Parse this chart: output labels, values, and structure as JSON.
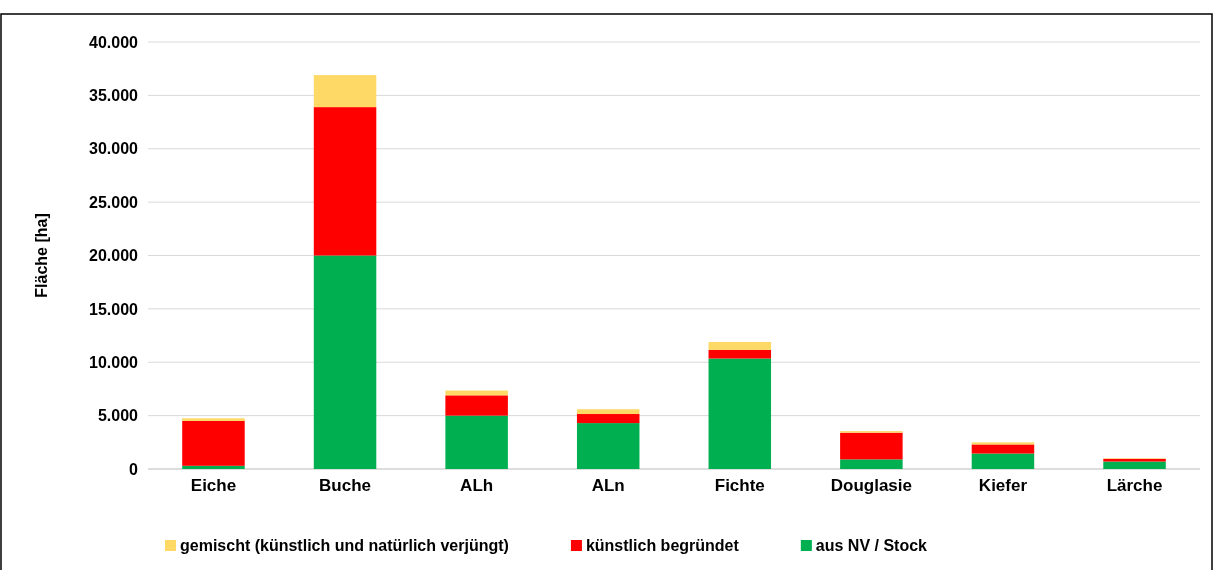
{
  "chart_data": {
    "type": "bar",
    "stacked": true,
    "ylabel": "Fläche [ha]",
    "categories": [
      "Eiche",
      "Buche",
      "ALh",
      "ALn",
      "Fichte",
      "Douglasie",
      "Kiefer",
      "Lärche"
    ],
    "series": [
      {
        "name": "aus NV / Stock",
        "color": "#00b050",
        "values": [
          300,
          20000,
          5000,
          4300,
          10350,
          900,
          1450,
          700
        ]
      },
      {
        "name": "künstlich begründet",
        "color": "#ff0000",
        "values": [
          4200,
          13900,
          1900,
          850,
          800,
          2500,
          850,
          250
        ]
      },
      {
        "name": "gemischt (künstlich und natürlich verjüngt)",
        "color": "#ffd966",
        "values": [
          250,
          3000,
          450,
          450,
          750,
          150,
          200,
          50
        ]
      }
    ],
    "ylim": [
      0,
      40000
    ],
    "yticks": [
      {
        "value": 0,
        "label": "0"
      },
      {
        "value": 5000,
        "label": "5.000"
      },
      {
        "value": 10000,
        "label": "10.000"
      },
      {
        "value": 15000,
        "label": "15.000"
      },
      {
        "value": 20000,
        "label": "20.000"
      },
      {
        "value": 25000,
        "label": "25.000"
      },
      {
        "value": 30000,
        "label": "30.000"
      },
      {
        "value": 35000,
        "label": "35.000"
      },
      {
        "value": 40000,
        "label": "40.000"
      }
    ],
    "grid": "y",
    "legend": "bottom"
  }
}
